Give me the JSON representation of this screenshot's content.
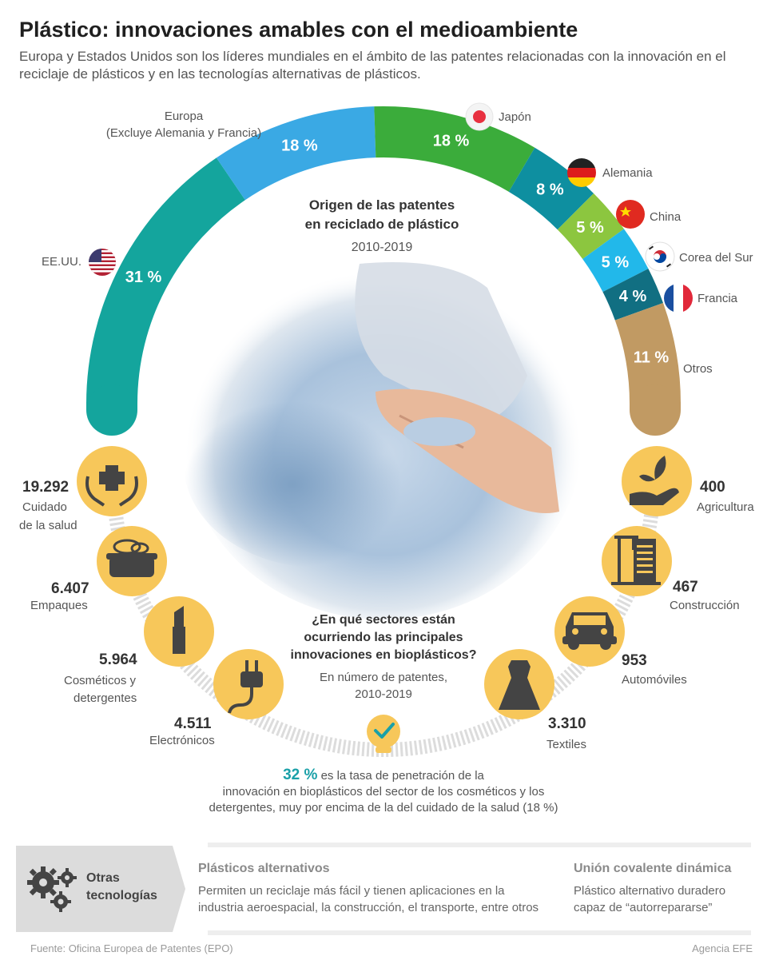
{
  "header": {
    "title": "Plástico: innovaciones amables con el medioambiente",
    "subtitle": "Europa y Estados Unidos son los líderes mundiales en el ámbito de las patentes relacionadas con la innovación en el reciclaje de plásticos y en las tecnologías alternativas de plásticos."
  },
  "chart_data": [
    {
      "type": "pie",
      "title_line1": "Origen de las patentes",
      "title_line2": "en reciclado de plástico",
      "subtitle": "2010-2019",
      "unit": "%",
      "slices": [
        {
          "label": "EE.UU.",
          "value": 31,
          "display": "31 %",
          "color": "#14a59d"
        },
        {
          "label_line1": "Europa",
          "label_line2": "(Excluye Alemania y Francia)",
          "value": 18,
          "display": "18 %",
          "color": "#3aa9e4"
        },
        {
          "label": "Japón",
          "value": 18,
          "display": "18 %",
          "color": "#3bac3b"
        },
        {
          "label": "Alemania",
          "value": 8,
          "display": "8 %",
          "color": "#0e8fa0"
        },
        {
          "label": "China",
          "value": 5,
          "display": "5 %",
          "color": "#8cc63f"
        },
        {
          "label": "Corea del Sur",
          "value": 5,
          "display": "5 %",
          "color": "#22b8ea"
        },
        {
          "label": "Francia",
          "value": 4,
          "display": "4 %",
          "color": "#116f82"
        },
        {
          "label": "Otros",
          "value": 11,
          "display": "11 %",
          "color": "#c19a63"
        }
      ]
    },
    {
      "type": "table",
      "title_line1": "¿En qué sectores están",
      "title_line2": "ocurriendo las principales",
      "title_line3": "innovaciones en bioplásticos?",
      "subtitle_line1": "En número de patentes,",
      "subtitle_line2": "2010-2019",
      "sectors": [
        {
          "value": 19292,
          "display": "19.292",
          "label_line1": "Cuidado",
          "label_line2": "de la salud",
          "icon": "health-hands-icon"
        },
        {
          "value": 6407,
          "display": "6.407",
          "label_line1": "Empaques",
          "label_line2": "",
          "icon": "food-container-icon"
        },
        {
          "value": 5964,
          "display": "5.964",
          "label_line1": "Cosméticos y",
          "label_line2": "detergentes",
          "icon": "lipstick-icon"
        },
        {
          "value": 4511,
          "display": "4.511",
          "label_line1": "Electrónicos",
          "label_line2": "",
          "icon": "plug-icon"
        },
        {
          "value": 3310,
          "display": "3.310",
          "label_line1": "Textiles",
          "label_line2": "",
          "icon": "dress-icon"
        },
        {
          "value": 953,
          "display": "953",
          "label_line1": "Automóviles",
          "label_line2": "",
          "icon": "car-icon"
        },
        {
          "value": 467,
          "display": "467",
          "label_line1": "Construcción",
          "label_line2": "",
          "icon": "crane-building-icon"
        },
        {
          "value": 400,
          "display": "400",
          "label_line1": "Agricultura",
          "label_line2": "",
          "icon": "plant-hand-icon"
        }
      ]
    }
  ],
  "stat": {
    "highlight": "32 %",
    "text_line1": " es la tasa de penetración de la",
    "text_line2": "innovación en bioplásticos del sector de los cosméticos y los",
    "text_line3": "detergentes, muy por encima de la del cuidado de la salud (18 %)"
  },
  "other_tech": {
    "label_line1": "Otras",
    "label_line2": "tecnologías",
    "col1_title": "Plásticos alternativos",
    "col1_line1": "Permiten un reciclaje más fácil y tienen aplicaciones en la",
    "col1_line2": "industria aeroespacial, la construcción, el transporte, entre otros",
    "col2_title": "Unión covalente dinámica",
    "col2_line1": "Plástico alternativo duradero",
    "col2_line2": "capaz de “autorrepararse”"
  },
  "footer": {
    "source": "Fuente: Oficina Europea de Patentes (EPO)",
    "agency": "Agencia EFE"
  },
  "colors": {
    "accent_teal": "#1aa0a8",
    "icon_yellow": "#f7c75a",
    "icon_dark": "#444444"
  }
}
